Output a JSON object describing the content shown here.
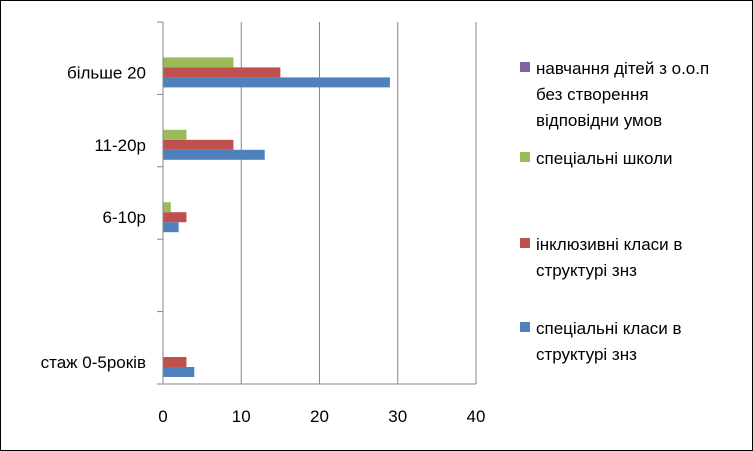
{
  "chart_data": {
    "type": "bar",
    "orientation": "horizontal",
    "title": "",
    "xlabel": "",
    "ylabel": "",
    "xlim": [
      0,
      40
    ],
    "x_ticks": [
      0,
      10,
      20,
      30,
      40
    ],
    "grid": "vertical",
    "legend_position": "right",
    "categories": [
      "стаж 0-5років",
      "",
      "6-10р",
      "11-20р",
      "більше 20"
    ],
    "series": [
      {
        "name": "спеціальні класи в структурі знз",
        "color": "#4F81BD",
        "values": [
          4,
          null,
          2,
          13,
          29
        ]
      },
      {
        "name": "інклюзивні класи в структурі знз",
        "color": "#C0504D",
        "values": [
          3,
          null,
          3,
          9,
          15
        ]
      },
      {
        "name": "спеціальні школи",
        "color": "#9BBB59",
        "values": [
          null,
          null,
          1,
          3,
          9
        ]
      },
      {
        "name": "навчання дітей з о.о.п без створення відповідни умов",
        "color": "#8064A2",
        "values": [
          null,
          null,
          null,
          null,
          null
        ]
      }
    ],
    "legend": [
      {
        "lines": [
          "навчання дітей з о.о.п",
          "без створення",
          "відповідни умов"
        ],
        "color": "#8064A2"
      },
      {
        "lines": [
          "спеціальні школи"
        ],
        "color": "#9BBB59"
      },
      {
        "lines": [
          "інклюзивні класи в",
          "структурі знз"
        ],
        "color": "#C0504D"
      },
      {
        "lines": [
          "спеціальні класи в",
          "структурі знз"
        ],
        "color": "#4F81BD"
      }
    ]
  }
}
